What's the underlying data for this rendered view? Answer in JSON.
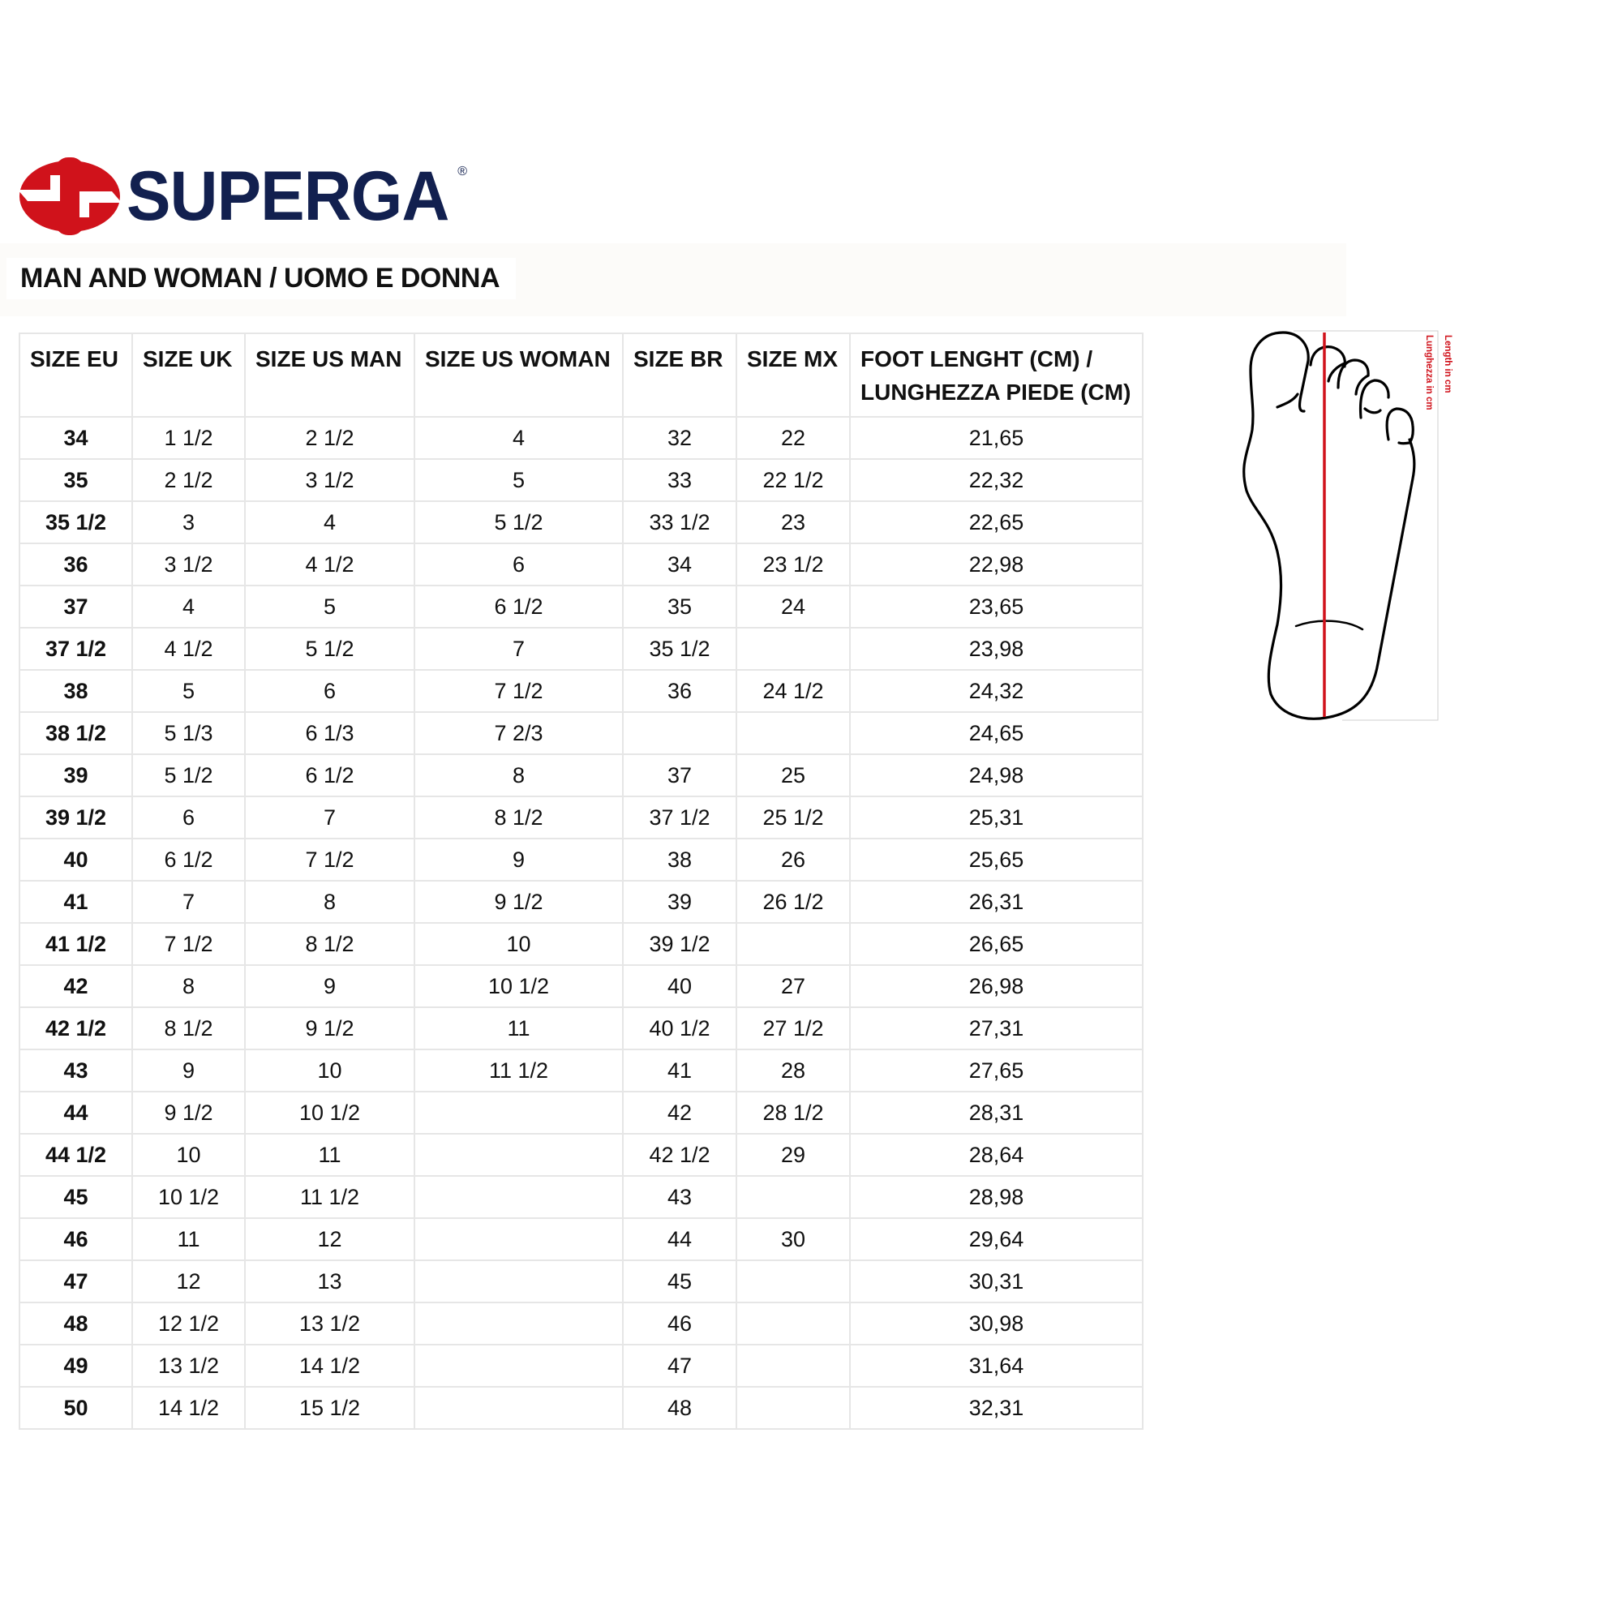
{
  "brand": {
    "name": "SUPERGA",
    "registered": "®",
    "logo_colors": {
      "mark": "#d0121b",
      "text": "#12204f"
    }
  },
  "title": "MAN AND WOMAN / UOMO E DONNA",
  "table": {
    "headers": [
      "SIZE EU",
      "SIZE UK",
      "SIZE US MAN",
      "SIZE US WOMAN",
      "SIZE BR",
      "SIZE MX",
      "FOOT LENGHT (CM) / LUNGHEZZA PIEDE (CM)"
    ],
    "rows": [
      [
        "34",
        "1 1/2",
        "2 1/2",
        "4",
        "32",
        "22",
        "21,65"
      ],
      [
        "35",
        "2 1/2",
        "3 1/2",
        "5",
        "33",
        "22 1/2",
        "22,32"
      ],
      [
        "35 1/2",
        "3",
        "4",
        "5 1/2",
        "33 1/2",
        "23",
        "22,65"
      ],
      [
        "36",
        "3 1/2",
        "4 1/2",
        "6",
        "34",
        "23 1/2",
        "22,98"
      ],
      [
        "37",
        "4",
        "5",
        "6 1/2",
        "35",
        "24",
        "23,65"
      ],
      [
        "37 1/2",
        "4 1/2",
        "5 1/2",
        "7",
        "35 1/2",
        "",
        "23,98"
      ],
      [
        "38",
        "5",
        "6",
        "7 1/2",
        "36",
        "24 1/2",
        "24,32"
      ],
      [
        "38 1/2",
        "5 1/3",
        "6 1/3",
        "7 2/3",
        "",
        "",
        "24,65"
      ],
      [
        "39",
        "5 1/2",
        "6 1/2",
        "8",
        "37",
        "25",
        "24,98"
      ],
      [
        "39 1/2",
        "6",
        "7",
        "8 1/2",
        "37 1/2",
        "25 1/2",
        "25,31"
      ],
      [
        "40",
        "6 1/2",
        "7 1/2",
        "9",
        "38",
        "26",
        "25,65"
      ],
      [
        "41",
        "7",
        "8",
        "9 1/2",
        "39",
        "26 1/2",
        "26,31"
      ],
      [
        "41 1/2",
        "7 1/2",
        "8 1/2",
        "10",
        "39 1/2",
        "",
        "26,65"
      ],
      [
        "42",
        "8",
        "9",
        "10 1/2",
        "40",
        "27",
        "26,98"
      ],
      [
        "42 1/2",
        "8 1/2",
        "9 1/2",
        "11",
        "40 1/2",
        "27 1/2",
        "27,31"
      ],
      [
        "43",
        "9",
        "10",
        "11 1/2",
        "41",
        "28",
        "27,65"
      ],
      [
        "44",
        "9 1/2",
        "10 1/2",
        "",
        "42",
        "28 1/2",
        "28,31"
      ],
      [
        "44 1/2",
        "10",
        "11",
        "",
        "42 1/2",
        "29",
        "28,64"
      ],
      [
        "45",
        "10 1/2",
        "11 1/2",
        "",
        "43",
        "",
        "28,98"
      ],
      [
        "46",
        "11",
        "12",
        "",
        "44",
        "30",
        "29,64"
      ],
      [
        "47",
        "12",
        "13",
        "",
        "45",
        "",
        "30,31"
      ],
      [
        "48",
        "12 1/2",
        "13 1/2",
        "",
        "46",
        "",
        "30,98"
      ],
      [
        "49",
        "13 1/2",
        "14 1/2",
        "",
        "47",
        "",
        "31,64"
      ],
      [
        "50",
        "14 1/2",
        "15 1/2",
        "",
        "48",
        "",
        "32,31"
      ]
    ]
  },
  "diagram": {
    "label_en": "Length in cm",
    "label_it": "Lunghezza in cm",
    "measure_color": "#d0121b"
  }
}
